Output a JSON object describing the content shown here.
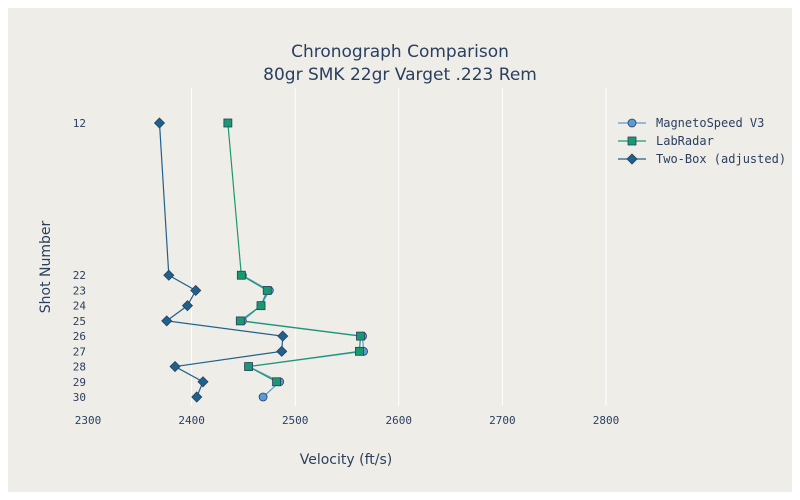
{
  "chart_data": {
    "type": "line",
    "title": "Chronograph Comparison",
    "subtitle": "80gr SMK 22gr Varget .223 Rem",
    "xlabel": "Velocity (ft/s)",
    "ylabel": "Shot Number",
    "xlim": [
      2300,
      2800
    ],
    "x_ticks": [
      2300,
      2400,
      2500,
      2600,
      2700,
      2800
    ],
    "y_ticks": [
      12,
      22,
      23,
      24,
      25,
      26,
      27,
      28,
      29,
      30
    ],
    "y_reversed": true,
    "grid": "vertical",
    "legend_position": "top-right",
    "series": [
      {
        "name": "MagnetoSpeed V3",
        "color": "#5b9bd5",
        "marker": "circle",
        "points": [
          {
            "shot": 22,
            "velocity": 2449
          },
          {
            "shot": 23,
            "velocity": 2475
          },
          {
            "shot": 24,
            "velocity": 2467
          },
          {
            "shot": 25,
            "velocity": 2449
          },
          {
            "shot": 26,
            "velocity": 2565
          },
          {
            "shot": 27,
            "velocity": 2566
          },
          {
            "shot": 28,
            "velocity": 2455
          },
          {
            "shot": 29,
            "velocity": 2485
          },
          {
            "shot": 30,
            "velocity": 2469
          }
        ]
      },
      {
        "name": "LabRadar",
        "color": "#1a9871",
        "marker": "square",
        "points": [
          {
            "shot": 12,
            "velocity": 2435
          },
          {
            "shot": 22,
            "velocity": 2448
          },
          {
            "shot": 23,
            "velocity": 2473
          },
          {
            "shot": 24,
            "velocity": 2467
          },
          {
            "shot": 25,
            "velocity": 2447
          },
          {
            "shot": 26,
            "velocity": 2563
          },
          {
            "shot": 27,
            "velocity": 2562
          },
          {
            "shot": 28,
            "velocity": 2455
          },
          {
            "shot": 29,
            "velocity": 2482
          }
        ]
      },
      {
        "name": "Two-Box (adjusted)",
        "color": "#1f618d",
        "marker": "diamond",
        "points": [
          {
            "shot": 12,
            "velocity": 2369
          },
          {
            "shot": 22,
            "velocity": 2378
          },
          {
            "shot": 23,
            "velocity": 2404
          },
          {
            "shot": 24,
            "velocity": 2396
          },
          {
            "shot": 25,
            "velocity": 2376
          },
          {
            "shot": 26,
            "velocity": 2488
          },
          {
            "shot": 27,
            "velocity": 2487
          },
          {
            "shot": 28,
            "velocity": 2384
          },
          {
            "shot": 29,
            "velocity": 2411
          },
          {
            "shot": 30,
            "velocity": 2405
          }
        ]
      }
    ]
  }
}
